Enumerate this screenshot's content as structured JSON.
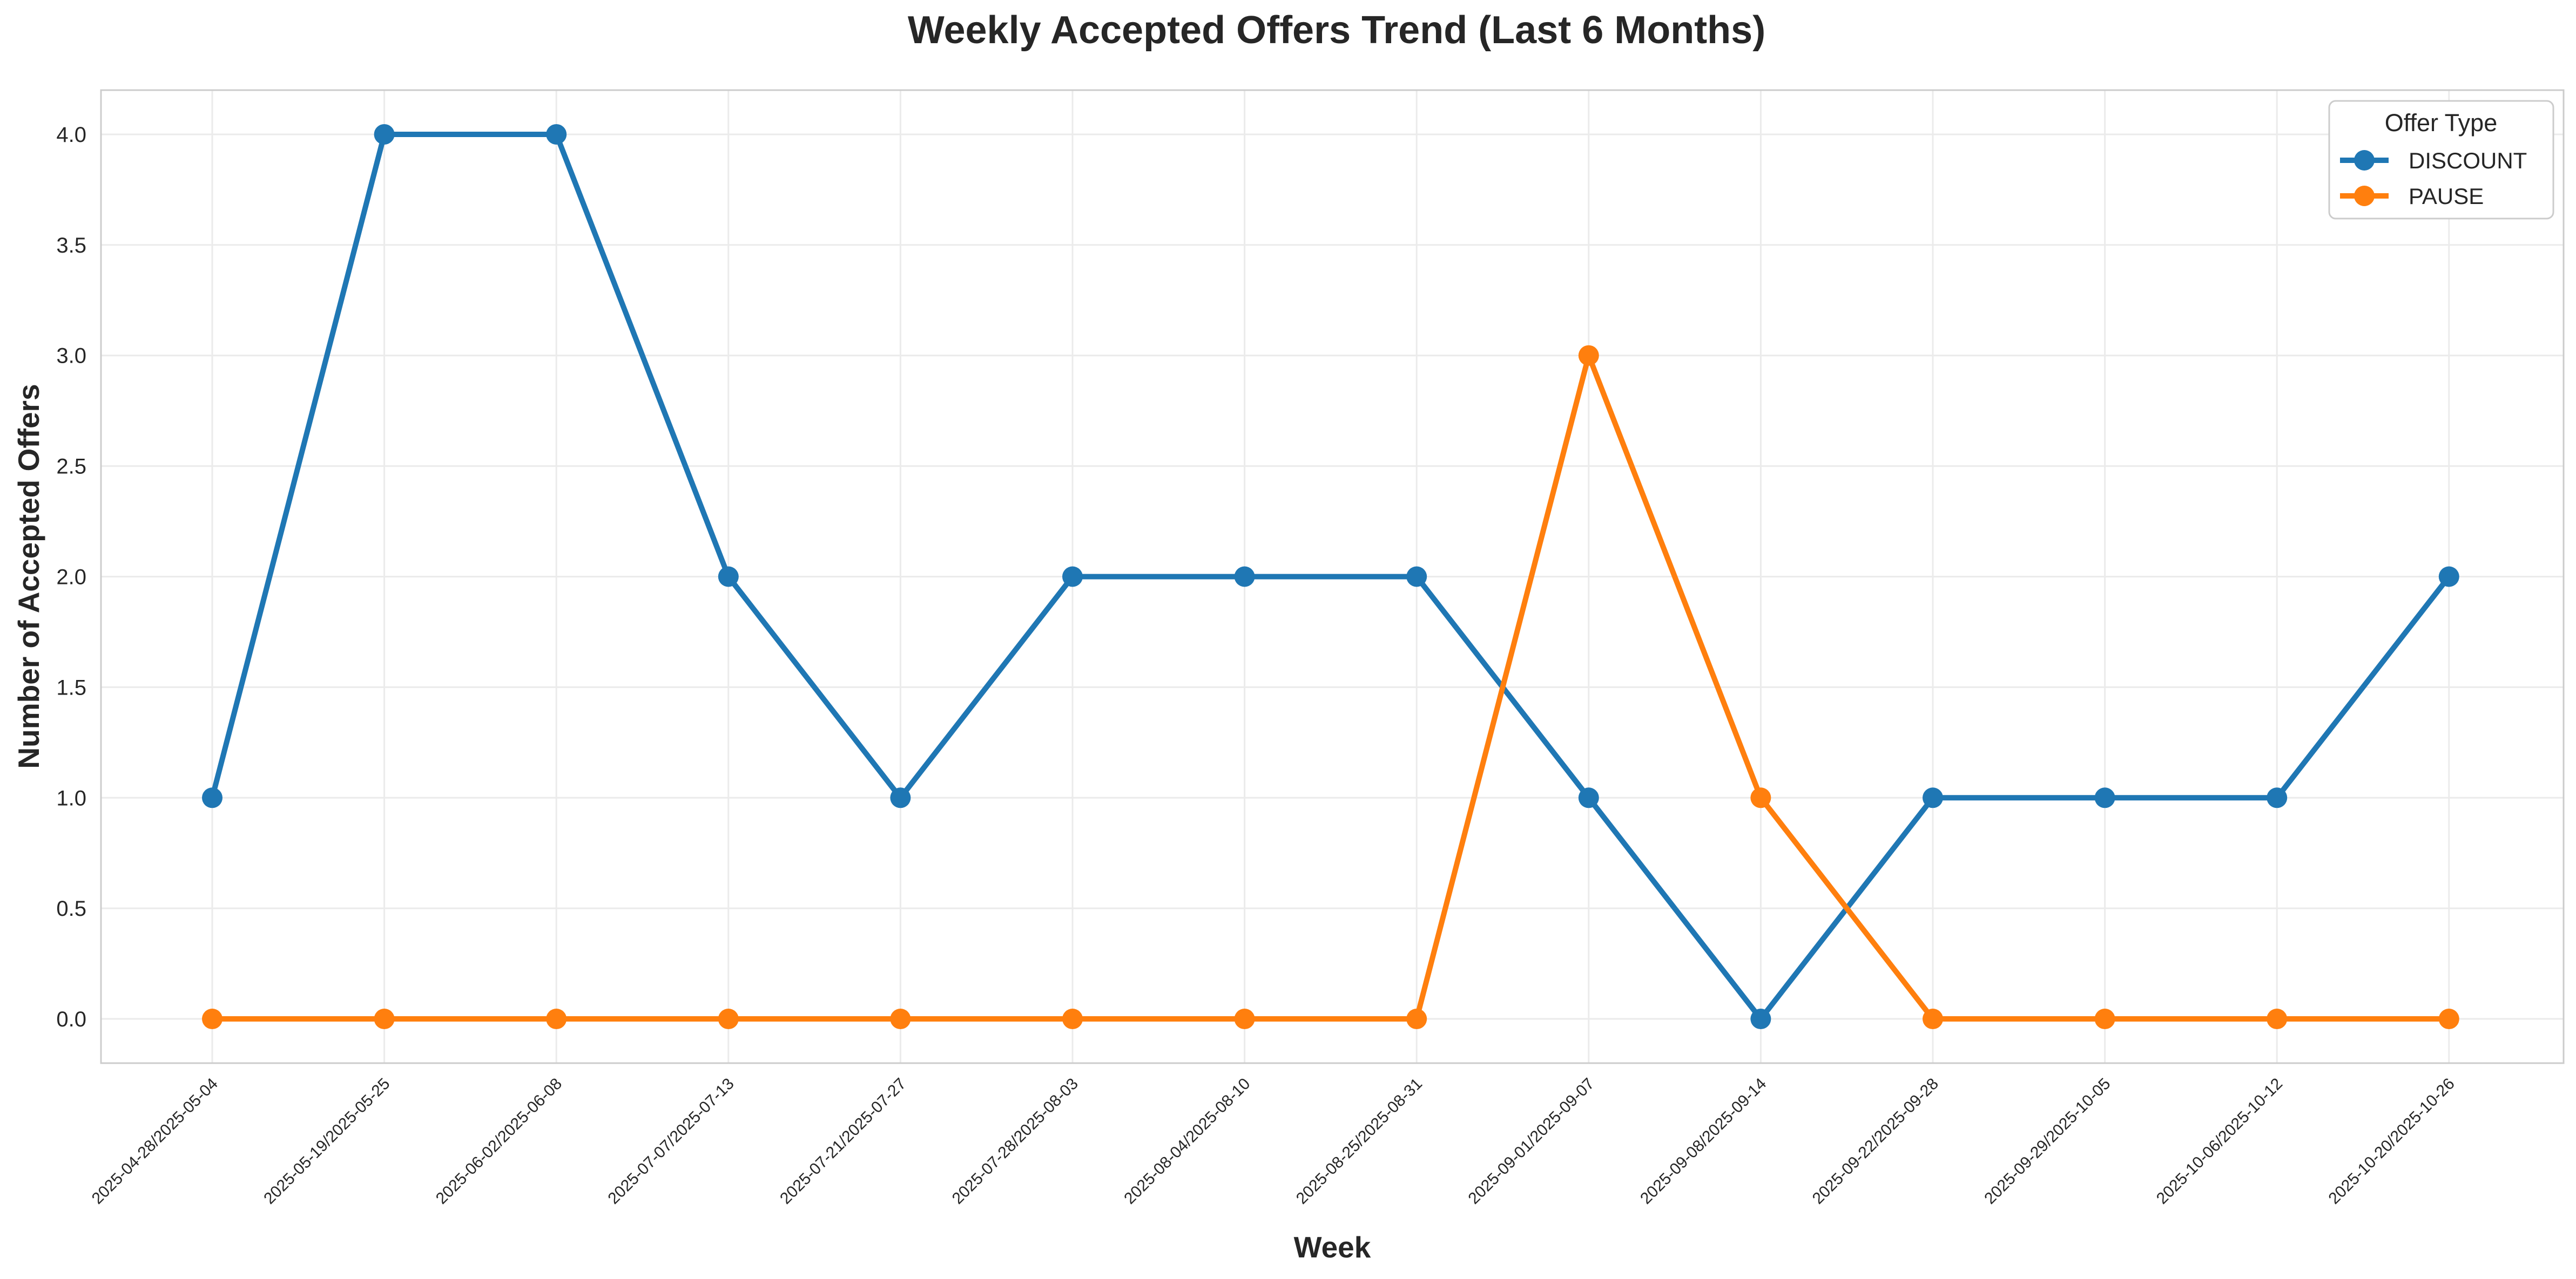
{
  "chart_data": {
    "type": "line",
    "title": "Weekly Accepted Offers Trend (Last 6 Months)",
    "xlabel": "Week",
    "ylabel": "Number of Accepted Offers",
    "categories": [
      "2025-04-28/2025-05-04",
      "2025-05-19/2025-05-25",
      "2025-06-02/2025-06-08",
      "2025-07-07/2025-07-13",
      "2025-07-21/2025-07-27",
      "2025-07-28/2025-08-03",
      "2025-08-04/2025-08-10",
      "2025-08-25/2025-08-31",
      "2025-09-01/2025-09-07",
      "2025-09-08/2025-09-14",
      "2025-09-22/2025-09-28",
      "2025-09-29/2025-10-05",
      "2025-10-06/2025-10-12",
      "2025-10-20/2025-10-26"
    ],
    "series": [
      {
        "name": "DISCOUNT",
        "color": "#1f77b4",
        "values": [
          1,
          4,
          4,
          2,
          1,
          2,
          2,
          2,
          1,
          0,
          1,
          1,
          1,
          2
        ]
      },
      {
        "name": "PAUSE",
        "color": "#ff7f0e",
        "values": [
          0,
          0,
          0,
          0,
          0,
          0,
          0,
          0,
          3,
          1,
          0,
          0,
          0,
          0
        ]
      }
    ],
    "ylim": [
      -0.2,
      4.2
    ],
    "yticks": [
      "0.0",
      "0.5",
      "1.0",
      "1.5",
      "2.0",
      "2.5",
      "3.0",
      "3.5",
      "4.0"
    ],
    "grid": true,
    "legend": {
      "title": "Offer Type",
      "placement": "top-right"
    }
  }
}
